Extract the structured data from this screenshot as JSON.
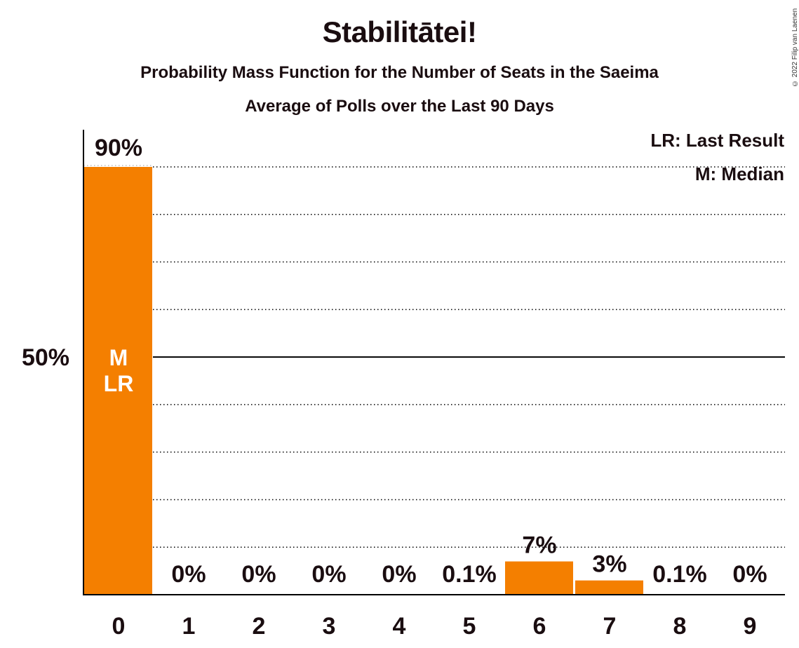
{
  "title": "Stabilitātei!",
  "subtitle": "Probability Mass Function for the Number of Seats in the Saeima",
  "subtitle2": "Average of Polls over the Last 90 Days",
  "copyright": "© 2022 Filip van Laenen",
  "legend": {
    "last_result": "LR: Last Result",
    "median": "M: Median"
  },
  "colors": {
    "bar": "#f47f00",
    "text": "#1a0d10",
    "axis": "#000000"
  },
  "chart_data": {
    "type": "bar",
    "categories": [
      "0",
      "1",
      "2",
      "3",
      "4",
      "5",
      "6",
      "7",
      "8",
      "9"
    ],
    "values": [
      90,
      0,
      0,
      0,
      0,
      0.1,
      7,
      3,
      0.1,
      0
    ],
    "value_labels": [
      "90%",
      "0%",
      "0%",
      "0%",
      "0%",
      "0.1%",
      "7%",
      "3%",
      "0.1%",
      "0%"
    ],
    "ylim": [
      0,
      90
    ],
    "y_tick_labels": [
      {
        "value": 50,
        "label": "50%"
      }
    ],
    "gridlines": [
      10,
      20,
      30,
      40,
      50,
      60,
      70,
      80,
      90
    ],
    "median_category": "0",
    "last_result_category": "0",
    "marker_labels": {
      "median": "M",
      "last_result": "LR"
    },
    "legend_position": "top-right"
  }
}
